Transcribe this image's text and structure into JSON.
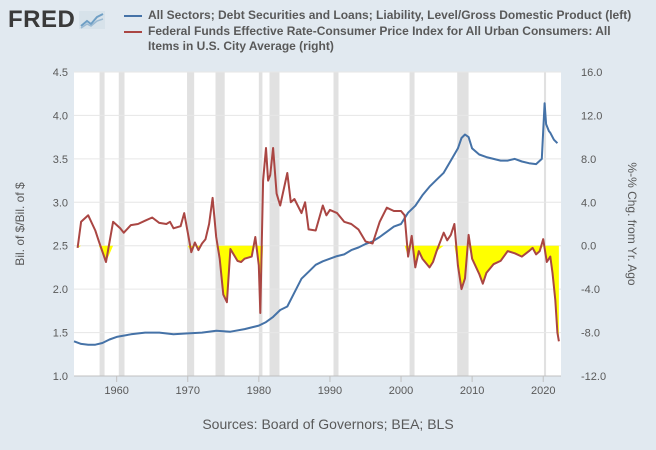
{
  "logo": {
    "text": "FRED"
  },
  "legend": [
    {
      "label": "All Sectors; Debt Securities and Loans; Liability, Level/Gross Domestic Product (left)",
      "color": "#4572a7"
    },
    {
      "label": "Federal Funds Effective Rate-Consumer Price Index for All Urban Consumers: All Items in U.S. City Average (right)",
      "color": "#aa4643"
    }
  ],
  "source": "Sources: Board of Governors; BEA; BLS",
  "colors": {
    "background": "#e1e9f0",
    "plot": "#ffffff",
    "recession": "#e1e1e1",
    "fill": "#ffff00"
  },
  "chart_data": {
    "type": "line",
    "xlim": [
      1954.0,
      2022.5
    ],
    "xticks": [
      1960,
      1970,
      1980,
      1990,
      2000,
      2010,
      2020
    ],
    "xtick_labels": [
      "1960",
      "1970",
      "1980",
      "1990",
      "2000",
      "2010",
      "2020"
    ],
    "left_axis": {
      "label": "Bil. of $/Bil. of $",
      "ylim": [
        1.0,
        4.5
      ],
      "ticks": [
        1.0,
        1.5,
        2.0,
        2.5,
        3.0,
        3.5,
        4.0,
        4.5
      ],
      "tick_labels": [
        "1.0",
        "1.5",
        "2.0",
        "2.5",
        "3.0",
        "3.5",
        "4.0",
        "4.5"
      ]
    },
    "right_axis": {
      "label": "%-% Chg. from Yr. Ago",
      "ylim": [
        -12.0,
        16.0
      ],
      "ticks": [
        -12,
        -8,
        -4,
        0,
        4,
        8,
        12,
        16
      ],
      "tick_labels": [
        "-12.0",
        "-8.0",
        "-4.0",
        "0.0",
        "4.0",
        "8.0",
        "12.0",
        "16.0"
      ]
    },
    "recessions": [
      [
        1957.6,
        1958.3
      ],
      [
        1960.3,
        1961.1
      ],
      [
        1969.9,
        1970.9
      ],
      [
        1973.9,
        1975.2
      ],
      [
        1980.0,
        1980.5
      ],
      [
        1981.5,
        1982.9
      ],
      [
        1990.5,
        1991.2
      ],
      [
        2001.2,
        2001.9
      ],
      [
        2007.9,
        2009.5
      ],
      [
        2020.1,
        2020.4
      ]
    ],
    "series": [
      {
        "name": "All Sectors; Debt Securities and Loans; Liability, Level/Gross Domestic Product (left)",
        "axis": "left",
        "x": [
          1954.0,
          1955.0,
          1956.0,
          1957.0,
          1958.0,
          1959.0,
          1960.0,
          1962.0,
          1964.0,
          1966.0,
          1968.0,
          1970.0,
          1972.0,
          1974.0,
          1976.0,
          1978.0,
          1980.0,
          1981.0,
          1982.0,
          1983.0,
          1984.0,
          1985.0,
          1986.0,
          1987.0,
          1988.0,
          1989.0,
          1990.0,
          1991.0,
          1992.0,
          1993.0,
          1994.0,
          1995.0,
          1996.0,
          1997.0,
          1998.0,
          1999.0,
          2000.0,
          2001.0,
          2002.0,
          2003.0,
          2004.0,
          2005.0,
          2006.0,
          2007.0,
          2008.0,
          2008.5,
          2009.0,
          2009.5,
          2010.0,
          2011.0,
          2012.0,
          2013.0,
          2014.0,
          2015.0,
          2016.0,
          2017.0,
          2018.0,
          2019.0,
          2019.8,
          2020.2,
          2020.4,
          2020.8,
          2021.0,
          2021.5,
          2022.0
        ],
        "y": [
          1.4,
          1.37,
          1.36,
          1.36,
          1.38,
          1.42,
          1.45,
          1.48,
          1.5,
          1.5,
          1.48,
          1.49,
          1.5,
          1.52,
          1.51,
          1.54,
          1.58,
          1.62,
          1.68,
          1.76,
          1.8,
          1.96,
          2.12,
          2.2,
          2.28,
          2.32,
          2.35,
          2.38,
          2.4,
          2.45,
          2.48,
          2.52,
          2.55,
          2.6,
          2.66,
          2.72,
          2.75,
          2.88,
          2.96,
          3.08,
          3.18,
          3.26,
          3.34,
          3.48,
          3.62,
          3.74,
          3.78,
          3.75,
          3.62,
          3.55,
          3.52,
          3.5,
          3.48,
          3.48,
          3.5,
          3.47,
          3.45,
          3.44,
          3.5,
          4.14,
          3.9,
          3.82,
          3.8,
          3.72,
          3.68
        ]
      },
      {
        "name": "Federal Funds Effective Rate-Consumer Price Index for All Urban Consumers: All Items in U.S. City Average (right)",
        "axis": "right",
        "x": [
          1954.5,
          1955.0,
          1956.0,
          1957.0,
          1957.5,
          1958.5,
          1959.5,
          1960.5,
          1961.0,
          1962.0,
          1963.0,
          1964.0,
          1965.0,
          1966.0,
          1967.0,
          1967.5,
          1968.0,
          1969.0,
          1969.5,
          1970.0,
          1970.5,
          1971.0,
          1971.5,
          1972.0,
          1972.5,
          1973.0,
          1973.5,
          1974.0,
          1974.5,
          1975.0,
          1975.5,
          1976.0,
          1977.0,
          1977.5,
          1978.0,
          1979.0,
          1979.5,
          1980.0,
          1980.2,
          1980.6,
          1981.0,
          1981.3,
          1981.6,
          1982.0,
          1982.5,
          1983.0,
          1984.0,
          1984.5,
          1985.0,
          1986.0,
          1986.5,
          1987.0,
          1988.0,
          1989.0,
          1989.5,
          1990.0,
          1991.0,
          1992.0,
          1993.0,
          1994.0,
          1995.0,
          1996.0,
          1997.0,
          1998.0,
          1999.0,
          2000.0,
          2000.5,
          2001.0,
          2001.5,
          2002.0,
          2002.5,
          2003.0,
          2004.0,
          2004.5,
          2005.0,
          2006.0,
          2006.5,
          2007.0,
          2007.5,
          2008.0,
          2008.5,
          2009.0,
          2009.5,
          2010.0,
          2011.0,
          2011.5,
          2012.0,
          2013.0,
          2014.0,
          2015.0,
          2016.0,
          2017.0,
          2018.0,
          2018.5,
          2019.0,
          2019.5,
          2020.0,
          2020.5,
          2021.0,
          2021.3,
          2021.7,
          2022.0,
          2022.2
        ],
        "y": [
          -0.2,
          2.2,
          2.8,
          1.4,
          0.4,
          -1.5,
          2.2,
          1.6,
          1.2,
          1.9,
          2.0,
          2.3,
          2.6,
          2.1,
          2.0,
          2.2,
          1.6,
          1.8,
          3.0,
          1.2,
          -0.6,
          0.3,
          -0.4,
          0.2,
          0.6,
          2.0,
          4.4,
          0.8,
          -1.2,
          -4.5,
          -5.2,
          -0.3,
          -1.4,
          -1.5,
          -1.2,
          -1.0,
          0.8,
          -1.8,
          -6.2,
          6.0,
          9.0,
          6.0,
          6.5,
          9.0,
          4.8,
          3.7,
          6.7,
          4.0,
          4.3,
          3.0,
          4.0,
          1.5,
          1.4,
          3.7,
          2.8,
          3.3,
          3.0,
          2.2,
          2.0,
          1.5,
          0.4,
          0.2,
          2.2,
          3.5,
          3.2,
          3.2,
          2.8,
          -1.0,
          0.9,
          -2.0,
          -0.5,
          -1.2,
          -2.0,
          -1.5,
          -0.5,
          1.2,
          0.5,
          1.0,
          2.0,
          -1.8,
          -4.0,
          -3.0,
          1.0,
          -1.2,
          -2.6,
          -3.5,
          -2.5,
          -1.7,
          -1.4,
          -0.5,
          -0.7,
          -1.0,
          -0.5,
          -0.2,
          -0.8,
          -0.5,
          0.6,
          -1.5,
          -1.0,
          -2.5,
          -5.0,
          -8.0,
          -8.8
        ]
      }
    ]
  }
}
